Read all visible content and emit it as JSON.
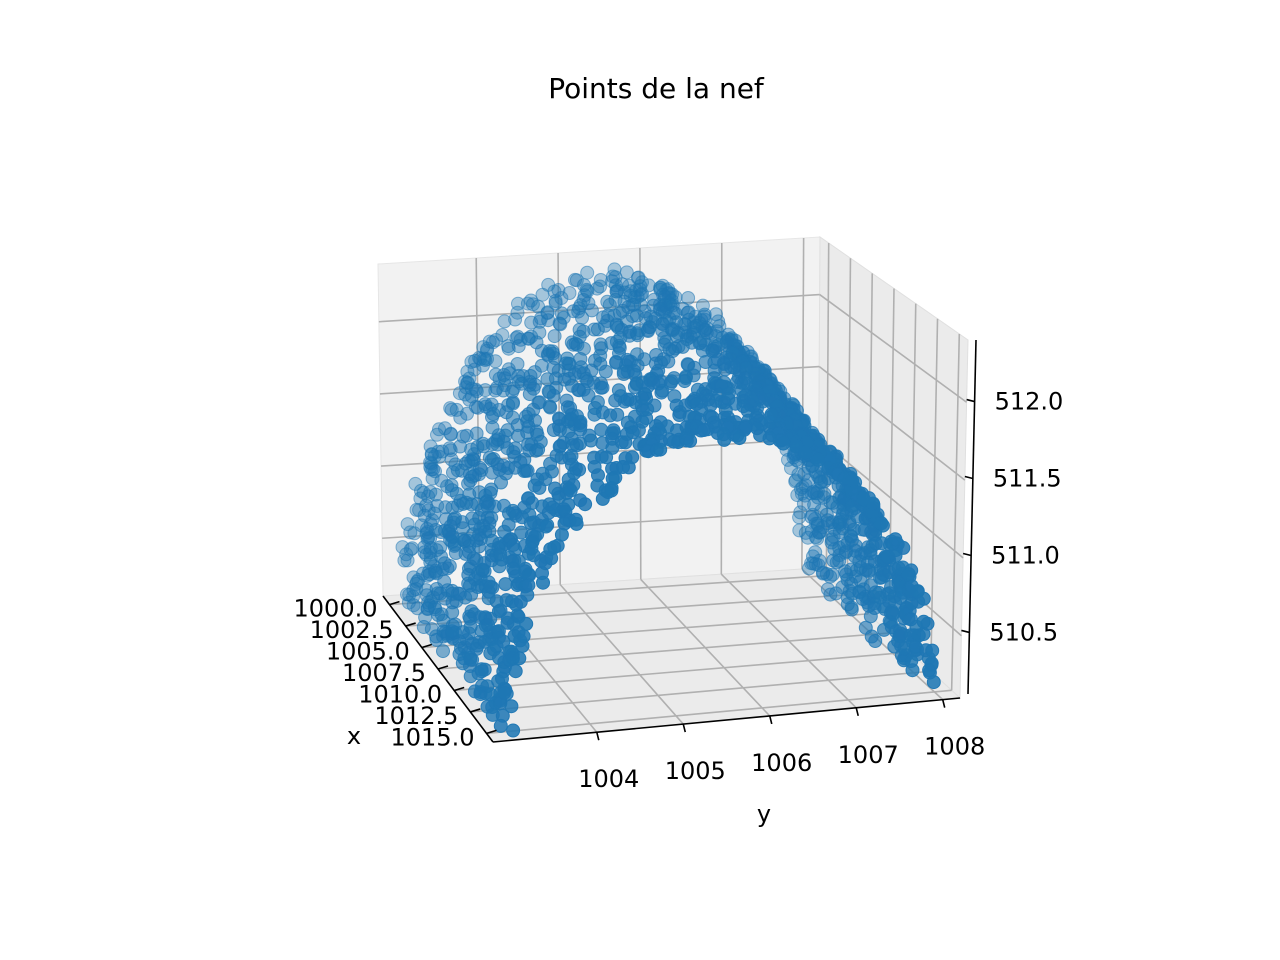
{
  "chart_data": {
    "type": "scatter",
    "projection": "3d",
    "title": "Points de la nef",
    "xlabel": "x",
    "ylabel": "y",
    "zlabel": "",
    "xlim": [
      999.0,
      1016.0
    ],
    "ylim": [
      1002.8,
      1008.2
    ],
    "zlim": [
      510.1,
      512.4
    ],
    "x_ticks": [
      "1000.0",
      "1002.5",
      "1005.0",
      "1007.5",
      "1010.0",
      "1012.5",
      "1015.0"
    ],
    "y_ticks": [
      "1004",
      "1005",
      "1006",
      "1007",
      "1008"
    ],
    "z_ticks": [
      "510.5",
      "511.0",
      "511.5",
      "512.0"
    ],
    "grid": true,
    "marker_color": "#1f77b4",
    "series": [
      {
        "description": "vault points: semi-circular arch in the y-z plane, extruded along x",
        "y_range": [
          1003.0,
          1008.0
        ],
        "z_base": 510.1,
        "z_crown": 512.3,
        "x_range": [
          999.5,
          1015.5
        ],
        "approx_points": 1800
      }
    ]
  },
  "colors": {
    "marker": "#1f77b4",
    "pane": "#f2f2f2",
    "grid": "#b0b0b0"
  }
}
